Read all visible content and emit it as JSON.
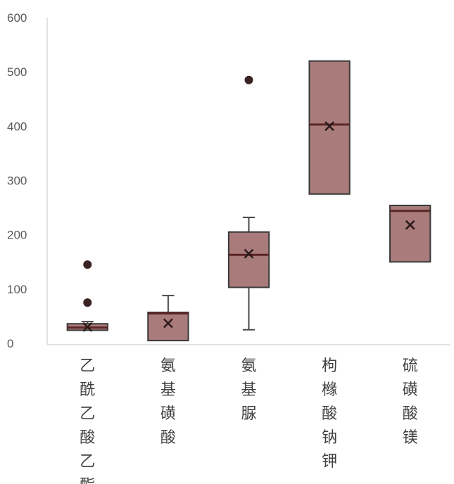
{
  "chart_data": {
    "type": "box",
    "ylim": [
      0,
      600
    ],
    "yticks": [
      0,
      100,
      200,
      300,
      400,
      500,
      600
    ],
    "categories": [
      "乙酰乙酸乙酯",
      "氨基磺酸",
      "氨基脲",
      "枸橼酸钠钾",
      "硫磺酸镁"
    ],
    "boxes": [
      {
        "min": 24,
        "q1": 24,
        "median": 29,
        "q3": 36,
        "max": 40,
        "mean": 30,
        "outliers": [
          75,
          145
        ]
      },
      {
        "min": 5,
        "q1": 5,
        "median": 55,
        "q3": 57,
        "max": 88,
        "mean": 37,
        "outliers": []
      },
      {
        "min": 25,
        "q1": 103,
        "median": 163,
        "q3": 205,
        "max": 232,
        "mean": 165,
        "outliers": [
          485
        ]
      },
      {
        "min": 275,
        "q1": 275,
        "median": 403,
        "q3": 520,
        "max": 520,
        "mean": 400,
        "outliers": []
      },
      {
        "min": 150,
        "q1": 150,
        "median": 244,
        "q3": 254,
        "max": 254,
        "mean": 218,
        "outliers": []
      }
    ],
    "box_color": "#a97b7b",
    "grid": false,
    "legend": "none"
  }
}
